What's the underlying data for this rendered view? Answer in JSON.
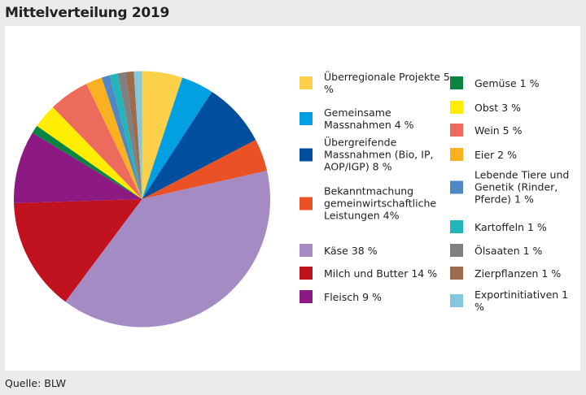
{
  "title": "Mittelverteilung 2019",
  "source": "Quelle: BLW",
  "chart_data": {
    "type": "pie",
    "title": "Mittelverteilung 2019",
    "start": "top",
    "direction": "clockwise",
    "legend_placement": "right",
    "slices": [
      {
        "label": "Überregionale Projekte 5 %",
        "value": 5,
        "color": "#fdd04a"
      },
      {
        "label": "Gemeinsame Massnahmen 4 %",
        "value": 4,
        "color": "#00a0e3"
      },
      {
        "label": "Übergreifende Massnahmen (Bio, IP, AOP/IGP) 8 %",
        "value": 8,
        "color": "#004f9f"
      },
      {
        "label": "Bekanntmachung gemeinwirtschaftliche Leistungen 4%",
        "value": 4,
        "color": "#ea5124"
      },
      {
        "label": "Käse 38 %",
        "value": 38,
        "color": "#a48bc3"
      },
      {
        "label": "Milch und Butter 14 %",
        "value": 14,
        "color": "#c1121f"
      },
      {
        "label": "Fleisch 9 %",
        "value": 9,
        "color": "#8c1a82"
      },
      {
        "label": "Gemüse 1 %",
        "value": 1,
        "color": "#0a8441"
      },
      {
        "label": "Obst 3 %",
        "value": 3,
        "color": "#ffed00"
      },
      {
        "label": "Wein 5 %",
        "value": 5,
        "color": "#ed6b5d"
      },
      {
        "label": "Eier 2 %",
        "value": 2,
        "color": "#f9b122"
      },
      {
        "label": "Lebende Tiere und Genetik (Rinder, Pferde) 1 %",
        "value": 1,
        "color": "#5287c6"
      },
      {
        "label": "Kartoffeln 1 %",
        "value": 1,
        "color": "#22b6bb"
      },
      {
        "label": "Ölsaaten 1 %",
        "value": 1,
        "color": "#808080"
      },
      {
        "label": "Zierpflanzen 1 %",
        "value": 1,
        "color": "#9c6c4d"
      },
      {
        "label": "Exportinitiativen 1 %",
        "value": 1,
        "color": "#85c8dd"
      }
    ]
  }
}
